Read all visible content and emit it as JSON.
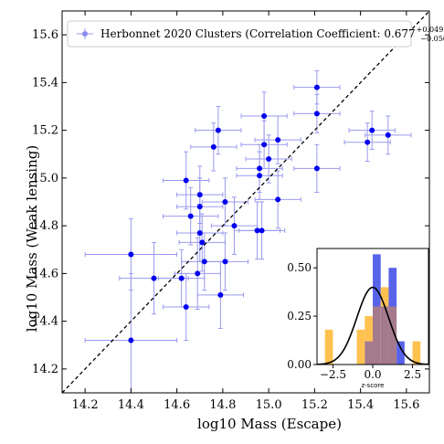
{
  "chart_data": [
    {
      "type": "scatter",
      "xlabel": "log10 Mass (Escape)",
      "ylabel": "log10 Mass (Weak lensing)",
      "xlim": [
        14.1,
        15.7
      ],
      "ylim": [
        14.1,
        15.7
      ],
      "xticks": [
        "14.2",
        "14.4",
        "14.6",
        "14.8",
        "15.0",
        "15.2",
        "15.4",
        "15.6"
      ],
      "yticks": [
        "14.2",
        "14.4",
        "14.6",
        "14.8",
        "15.0",
        "15.2",
        "15.4",
        "15.6"
      ],
      "grid": false,
      "legend_position": "top",
      "legend_label": "Herbonnet 2020 Clusters (Correlation Coefficient: 0.677",
      "legend_sup": "+0.049",
      "legend_sub": "−0.056",
      "legend_close": ")",
      "reference_line": "y = x (dashed, black)",
      "color": "#0000ee",
      "errorbar_color": "#9a9aee",
      "series": [
        {
          "points": [
            {
              "x": 14.4,
              "y": 14.32,
              "xerr": 0.2,
              "yerr": 0.28
            },
            {
              "x": 14.4,
              "y": 14.68,
              "xerr": 0.2,
              "yerr": 0.15
            },
            {
              "x": 14.5,
              "y": 14.58,
              "xerr": 0.15,
              "yerr": 0.15
            },
            {
              "x": 14.62,
              "y": 14.58,
              "xerr": 0.1,
              "yerr": 0.12
            },
            {
              "x": 14.64,
              "y": 14.46,
              "xerr": 0.1,
              "yerr": 0.14
            },
            {
              "x": 14.64,
              "y": 14.99,
              "xerr": 0.1,
              "yerr": 0.12
            },
            {
              "x": 14.66,
              "y": 14.84,
              "xerr": 0.12,
              "yerr": 0.12
            },
            {
              "x": 14.69,
              "y": 14.6,
              "xerr": 0.1,
              "yerr": 0.15
            },
            {
              "x": 14.7,
              "y": 14.88,
              "xerr": 0.1,
              "yerr": 0.12
            },
            {
              "x": 14.7,
              "y": 14.93,
              "xerr": 0.1,
              "yerr": 0.12
            },
            {
              "x": 14.7,
              "y": 14.77,
              "xerr": 0.1,
              "yerr": 0.12
            },
            {
              "x": 14.71,
              "y": 14.73,
              "xerr": 0.1,
              "yerr": 0.12
            },
            {
              "x": 14.72,
              "y": 14.65,
              "xerr": 0.1,
              "yerr": 0.12
            },
            {
              "x": 14.76,
              "y": 15.13,
              "xerr": 0.1,
              "yerr": 0.1
            },
            {
              "x": 14.78,
              "y": 15.2,
              "xerr": 0.1,
              "yerr": 0.1
            },
            {
              "x": 14.79,
              "y": 14.51,
              "xerr": 0.1,
              "yerr": 0.14
            },
            {
              "x": 14.81,
              "y": 14.65,
              "xerr": 0.1,
              "yerr": 0.12
            },
            {
              "x": 14.81,
              "y": 14.9,
              "xerr": 0.1,
              "yerr": 0.1
            },
            {
              "x": 14.85,
              "y": 14.8,
              "xerr": 0.1,
              "yerr": 0.12
            },
            {
              "x": 14.95,
              "y": 14.78,
              "xerr": 0.1,
              "yerr": 0.12
            },
            {
              "x": 14.96,
              "y": 15.04,
              "xerr": 0.1,
              "yerr": 0.1
            },
            {
              "x": 14.96,
              "y": 15.01,
              "xerr": 0.1,
              "yerr": 0.1
            },
            {
              "x": 14.97,
              "y": 14.78,
              "xerr": 0.1,
              "yerr": 0.12
            },
            {
              "x": 14.98,
              "y": 15.14,
              "xerr": 0.1,
              "yerr": 0.1
            },
            {
              "x": 14.98,
              "y": 15.26,
              "xerr": 0.1,
              "yerr": 0.1
            },
            {
              "x": 15.0,
              "y": 15.08,
              "xerr": 0.1,
              "yerr": 0.1
            },
            {
              "x": 15.04,
              "y": 15.16,
              "xerr": 0.1,
              "yerr": 0.1
            },
            {
              "x": 15.04,
              "y": 14.91,
              "xerr": 0.1,
              "yerr": 0.12
            },
            {
              "x": 15.21,
              "y": 15.38,
              "xerr": 0.1,
              "yerr": 0.07
            },
            {
              "x": 15.21,
              "y": 15.27,
              "xerr": 0.1,
              "yerr": 0.08
            },
            {
              "x": 15.21,
              "y": 15.04,
              "xerr": 0.1,
              "yerr": 0.1
            },
            {
              "x": 15.43,
              "y": 15.15,
              "xerr": 0.1,
              "yerr": 0.08
            },
            {
              "x": 15.45,
              "y": 15.2,
              "xerr": 0.1,
              "yerr": 0.08
            },
            {
              "x": 15.52,
              "y": 15.18,
              "xerr": 0.1,
              "yerr": 0.08
            }
          ]
        }
      ]
    },
    {
      "type": "bar",
      "role": "inset histogram",
      "xlabel": "z-score",
      "xlim": [
        -3.5,
        3.5
      ],
      "ylim": [
        0,
        0.6
      ],
      "xticks": [
        "−2.5",
        "0.0",
        "2.5"
      ],
      "yticks": [
        "0.00",
        "0.25",
        "0.50"
      ],
      "series": [
        {
          "color": "#ffb732",
          "bin_width": 0.5,
          "bins": [
            {
              "x0": -3.0,
              "value": 0.18
            },
            {
              "x0": -2.5,
              "value": 0.0
            },
            {
              "x0": -2.0,
              "value": 0.0
            },
            {
              "x0": -1.5,
              "value": 0.0
            },
            {
              "x0": -1.0,
              "value": 0.18
            },
            {
              "x0": -0.5,
              "value": 0.25
            },
            {
              "x0": 0.0,
              "value": 0.3
            },
            {
              "x0": 0.5,
              "value": 0.4
            },
            {
              "x0": 1.0,
              "value": 0.3
            },
            {
              "x0": 1.5,
              "value": 0.0
            },
            {
              "x0": 2.0,
              "value": 0.0
            },
            {
              "x0": 2.5,
              "value": 0.12
            }
          ]
        },
        {
          "color": "#3b48e6",
          "bin_width": 0.5,
          "bins": [
            {
              "x0": -3.0,
              "value": 0.0
            },
            {
              "x0": -2.5,
              "value": 0.0
            },
            {
              "x0": -2.0,
              "value": 0.0
            },
            {
              "x0": -1.5,
              "value": 0.0
            },
            {
              "x0": -1.0,
              "value": 0.0
            },
            {
              "x0": -0.5,
              "value": 0.12
            },
            {
              "x0": 0.0,
              "value": 0.57
            },
            {
              "x0": 0.5,
              "value": 0.3
            },
            {
              "x0": 1.0,
              "value": 0.5
            },
            {
              "x0": 1.5,
              "value": 0.12
            },
            {
              "x0": 2.0,
              "value": 0.0
            },
            {
              "x0": 2.5,
              "value": 0.0
            }
          ]
        }
      ],
      "overlap_color": "#a57a8c",
      "curve": {
        "type": "normal",
        "mean": 0.0,
        "sigma": 1.0,
        "color": "#000000"
      }
    }
  ]
}
